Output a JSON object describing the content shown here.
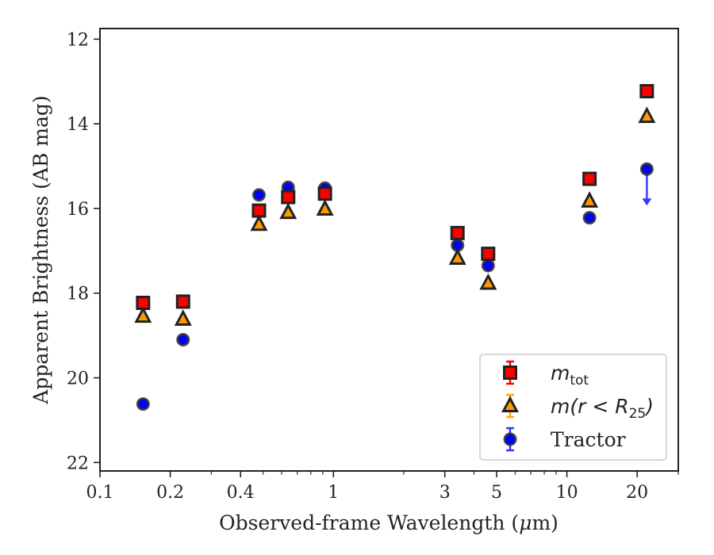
{
  "chart_data": {
    "type": "scatter",
    "xlabel": "Observed-frame Wavelength (μm)",
    "xlabel_parts": [
      "Observed-frame Wavelength (",
      "μ",
      "m)"
    ],
    "ylabel": "Apparent Brightness (AB mag)",
    "x_scale": "log",
    "y_inverted": true,
    "xlim": [
      0.1,
      30
    ],
    "ylim": [
      22.2,
      11.75
    ],
    "x_ticks": [
      0.1,
      0.2,
      0.4,
      1,
      3,
      5,
      10,
      20
    ],
    "x_tick_labels": [
      "0.1",
      "0.2",
      "0.4",
      "1",
      "3",
      "5",
      "10",
      "20"
    ],
    "y_ticks": [
      12,
      14,
      16,
      18,
      20,
      22
    ],
    "y_tick_labels": [
      "12",
      "14",
      "16",
      "18",
      "20",
      "22"
    ],
    "grid": false,
    "legend_position": "lower-right",
    "series": [
      {
        "name": "m_tot",
        "legend_main": "m",
        "legend_sub": "tot",
        "marker": "square",
        "color": "#ff0000",
        "edge_color": "#222222",
        "errorbar_color": "#ff0000",
        "x": [
          0.153,
          0.227,
          0.48,
          0.64,
          0.92,
          3.4,
          4.6,
          12.5,
          22.0
        ],
        "y": [
          18.23,
          18.2,
          16.05,
          15.73,
          15.65,
          16.58,
          17.07,
          15.3,
          13.23
        ]
      },
      {
        "name": "m(r < R25)",
        "legend_main": "m(r < R",
        "legend_sub": "25",
        "legend_end": ")",
        "marker": "triangle",
        "color": "#ff9900",
        "edge_color": "#222222",
        "errorbar_color": "#ffaa00",
        "x": [
          0.153,
          0.227,
          0.48,
          0.64,
          0.92,
          3.4,
          4.6,
          12.5,
          22.0
        ],
        "y": [
          18.55,
          18.62,
          16.38,
          16.1,
          16.02,
          17.18,
          17.77,
          15.83,
          13.83
        ]
      },
      {
        "name": "Tractor",
        "legend_main": "Tractor",
        "marker": "circle",
        "color": "#0000ff",
        "edge_color": "#333333",
        "errorbar_color": "#3333ff",
        "x": [
          0.153,
          0.227,
          0.48,
          0.64,
          0.92,
          3.4,
          4.6,
          12.5,
          22.0
        ],
        "y": [
          20.62,
          19.1,
          15.68,
          15.5,
          15.52,
          16.87,
          17.35,
          16.22,
          15.07
        ],
        "upper_limit_index": 8
      }
    ]
  }
}
